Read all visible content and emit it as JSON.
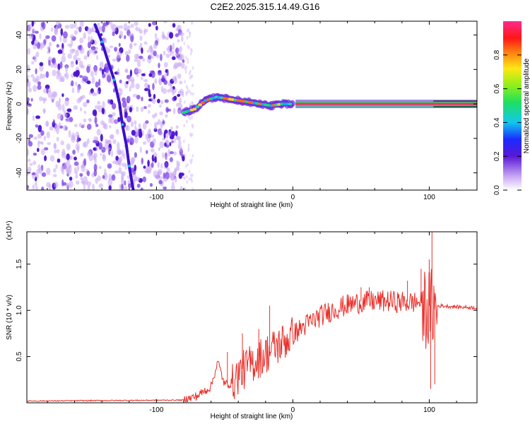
{
  "title": "C2E2.2025.315.14.49.G16",
  "colors": {
    "snr_line": "#e8302a",
    "axis": "#000000",
    "track": "#4b1fd6"
  },
  "chart_data": [
    {
      "type": "heatmap",
      "xlabel": "Height of straight line (km)",
      "ylabel": "Frequency (Hz)",
      "xlim": [
        -195,
        135
      ],
      "ylim": [
        -50,
        48
      ],
      "xticks": [
        -100,
        0,
        100
      ],
      "yticks": [
        -40,
        -20,
        0,
        20,
        40
      ],
      "colorbar": {
        "label": "Normalized spectral amplitude",
        "range": [
          0.0,
          1.0
        ],
        "ticks": [
          0.0,
          0.2,
          0.4,
          0.6,
          0.8
        ],
        "tick_labels": [
          "0.0",
          "0.2",
          "0.4",
          "0.6",
          "0.8"
        ],
        "colormap": "white-purple-blue-cyan-green-yellow-red-magenta"
      },
      "noise_region_x": [
        -195,
        -80
      ],
      "track": [
        {
          "x": 2,
          "y": 0
        },
        {
          "x": 20,
          "y": 0
        },
        {
          "x": 40,
          "y": 0
        },
        {
          "x": 60,
          "y": 0
        },
        {
          "x": 80,
          "y": 0
        },
        {
          "x": 100,
          "y": 0
        },
        {
          "x": 120,
          "y": 0
        },
        {
          "x": 135,
          "y": 0
        }
      ],
      "low_track": [
        {
          "x": -80,
          "y": -5
        },
        {
          "x": -72,
          "y": -3
        },
        {
          "x": -64,
          "y": 2
        },
        {
          "x": -56,
          "y": 4
        },
        {
          "x": -48,
          "y": 3
        },
        {
          "x": -40,
          "y": 2
        },
        {
          "x": -32,
          "y": 1
        },
        {
          "x": -24,
          "y": 0
        },
        {
          "x": -16,
          "y": -1
        },
        {
          "x": -8,
          "y": 0
        },
        {
          "x": 0,
          "y": 0
        }
      ],
      "chirp": [
        {
          "x": -145,
          "y": 46
        },
        {
          "x": -140,
          "y": 36
        },
        {
          "x": -136,
          "y": 26
        },
        {
          "x": -131,
          "y": 14
        },
        {
          "x": -127,
          "y": 0
        },
        {
          "x": -125,
          "y": -12
        },
        {
          "x": -122,
          "y": -24
        },
        {
          "x": -120,
          "y": -36
        },
        {
          "x": -117,
          "y": -50
        }
      ]
    },
    {
      "type": "line",
      "xlabel": "Height of straight line (km)",
      "ylabel": "SNR (10 * v/v)",
      "y_multiplier": "(x10⁴)",
      "xlim": [
        -195,
        135
      ],
      "ylim": [
        0,
        1.85
      ],
      "xticks": [
        -100,
        0,
        100
      ],
      "yticks": [
        0.5,
        1.0,
        1.5
      ],
      "ytick_labels": [
        "0.5",
        "1.0",
        "1.5"
      ],
      "series": [
        {
          "x": [
            -195,
            -80,
            -70,
            -60,
            -55,
            -50,
            -45,
            -40,
            -30,
            -20,
            -10,
            0,
            10,
            20,
            30,
            40,
            50,
            60,
            70,
            80,
            90,
            95,
            100,
            103,
            105,
            110,
            120,
            135
          ],
          "y": [
            0.02,
            0.03,
            0.08,
            0.18,
            0.45,
            0.2,
            0.22,
            0.33,
            0.45,
            0.55,
            0.65,
            0.75,
            0.86,
            0.95,
            1.02,
            1.07,
            1.1,
            1.11,
            1.11,
            1.1,
            1.1,
            1.1,
            1.05,
            1.08,
            1.05,
            1.05,
            1.04,
            1.03
          ],
          "spikes": [
            {
              "x": -48,
              "y": 0.55
            },
            {
              "x": -37,
              "y": 0.75
            },
            {
              "x": -25,
              "y": 0.8
            },
            {
              "x": -17,
              "y": 1.05
            },
            {
              "x": 50,
              "y": 1.25
            },
            {
              "x": 56,
              "y": 1.25
            },
            {
              "x": 84,
              "y": 1.32
            },
            {
              "x": 94,
              "y": 1.45
            },
            {
              "x": 100,
              "y": 1.55
            },
            {
              "x": 102,
              "y": 1.85
            },
            {
              "x": 101,
              "y": 0.15
            },
            {
              "x": 104,
              "y": 0.2
            }
          ]
        }
      ]
    }
  ]
}
